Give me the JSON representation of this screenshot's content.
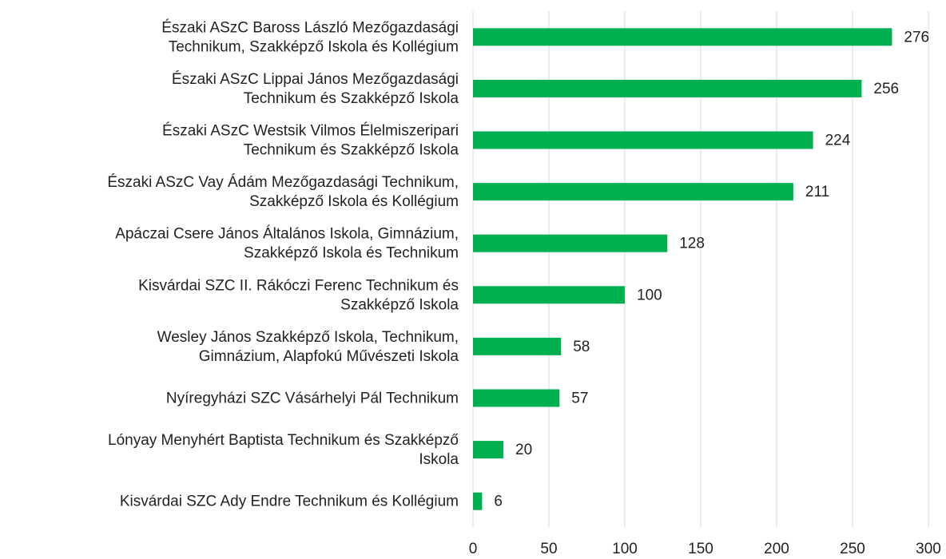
{
  "chart_data": {
    "type": "hbar",
    "categories": [
      [
        "Északi ASzC Baross László Mezőgazdasági",
        "Technikum, Szakképző Iskola és Kollégium"
      ],
      [
        "Északi ASzC Lippai János Mezőgazdasági",
        "Technikum és Szakképző Iskola"
      ],
      [
        "Északi ASzC Westsik Vilmos Élelmiszeripari",
        "Technikum és Szakképző Iskola"
      ],
      [
        "Északi ASzC Vay Ádám Mezőgazdasági Technikum,",
        "Szakképző Iskola és Kollégium"
      ],
      [
        "Apáczai Csere János Általános Iskola, Gimnázium,",
        "Szakképző Iskola és Technikum"
      ],
      [
        "Kisvárdai SZC II. Rákóczi Ferenc Technikum és",
        "Szakképző Iskola"
      ],
      [
        "Wesley János Szakképző Iskola, Technikum,",
        "Gimnázium, Alapfokú Művészeti Iskola"
      ],
      [
        "Nyíregyházi SZC Vásárhelyi Pál Technikum"
      ],
      [
        "Lónyay Menyhért Baptista Technikum és Szakképző",
        "Iskola"
      ],
      [
        "Kisvárdai SZC Ady Endre Technikum és Kollégium"
      ]
    ],
    "values": [
      276,
      256,
      224,
      211,
      128,
      100,
      58,
      57,
      20,
      6
    ],
    "color": "#00b050",
    "xlim": [
      0,
      300
    ],
    "xticks": [
      0,
      50,
      100,
      150,
      200,
      250,
      300
    ],
    "grid": true
  }
}
